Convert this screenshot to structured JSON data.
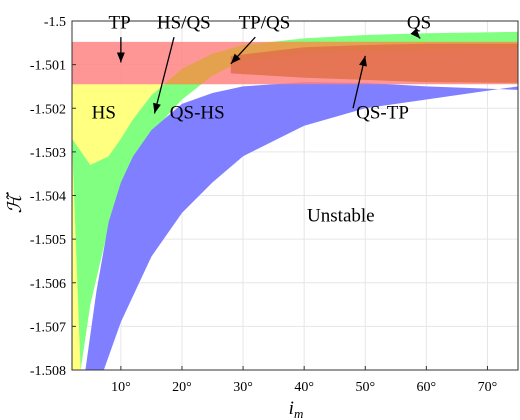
{
  "chart_data": {
    "type": "area",
    "xlabel_main": "i",
    "xlabel_sub": "m",
    "ylabel": "ℋ̃",
    "xlim": [
      2,
      75
    ],
    "ylim": [
      -1.508,
      -1.5
    ],
    "xticks": [
      10,
      20,
      30,
      40,
      50,
      60,
      70
    ],
    "xtick_labels": [
      "10°",
      "20°",
      "30°",
      "40°",
      "50°",
      "60°",
      "70°"
    ],
    "yticks": [
      -1.5,
      -1.501,
      -1.502,
      -1.503,
      -1.504,
      -1.505,
      -1.506,
      -1.507,
      -1.508
    ],
    "ytick_labels": [
      "-1.5",
      "-1.501",
      "-1.502",
      "-1.503",
      "-1.504",
      "-1.505",
      "-1.506",
      "-1.507",
      "-1.508"
    ],
    "grid": true,
    "regions": [
      {
        "name": "HS",
        "color": "#ffff80",
        "upper": [
          [
            2,
            -1.50145
          ],
          [
            75,
            -1.50145
          ]
        ],
        "lower_curve": "green-left"
      },
      {
        "name": "QS",
        "color": "#80ff80",
        "upper": [
          [
            2,
            -1.5027
          ],
          [
            5,
            -1.5033
          ],
          [
            8,
            -1.5031
          ],
          [
            10,
            -1.5027
          ],
          [
            12,
            -1.50225
          ],
          [
            15,
            -1.5017
          ],
          [
            20,
            -1.5011
          ],
          [
            25,
            -1.50075
          ],
          [
            30,
            -1.50055
          ],
          [
            40,
            -1.5004
          ],
          [
            50,
            -1.50032
          ],
          [
            60,
            -1.50028
          ],
          [
            75,
            -1.50025
          ]
        ],
        "lower": [
          [
            3.4,
            -1.508
          ],
          [
            5,
            -1.5065
          ],
          [
            8,
            -1.5047
          ],
          [
            10,
            -1.504
          ],
          [
            12,
            -1.5034
          ],
          [
            15,
            -1.5026
          ],
          [
            18,
            -1.5021
          ],
          [
            20,
            -1.5018
          ],
          [
            25,
            -1.50125
          ],
          [
            30,
            -1.5009
          ],
          [
            40,
            -1.50075
          ],
          [
            50,
            -1.5007
          ],
          [
            60,
            -1.50065
          ],
          [
            75,
            -1.50062
          ]
        ]
      },
      {
        "name": "QS-HS",
        "color": "#7f7fff",
        "upper": [
          [
            4.2,
            -1.508
          ],
          [
            6,
            -1.5062
          ],
          [
            8,
            -1.5046
          ],
          [
            10,
            -1.5037
          ],
          [
            12,
            -1.5031
          ],
          [
            15,
            -1.5025
          ],
          [
            20,
            -1.5019
          ],
          [
            25,
            -1.50165
          ],
          [
            30,
            -1.5015
          ],
          [
            40,
            -1.5014
          ],
          [
            50,
            -1.50142
          ],
          [
            60,
            -1.5015
          ],
          [
            75,
            -1.50158
          ]
        ],
        "lower": [
          [
            7.2,
            -1.508
          ],
          [
            10,
            -1.5069
          ],
          [
            15,
            -1.5054
          ],
          [
            20,
            -1.5044
          ],
          [
            25,
            -1.5037
          ],
          [
            30,
            -1.5031
          ],
          [
            40,
            -1.5024
          ],
          [
            50,
            -1.502
          ],
          [
            60,
            -1.5018
          ],
          [
            75,
            -1.5015
          ]
        ]
      },
      {
        "name": "TP",
        "color": "#ff7f7f",
        "upper": [
          [
            2,
            -1.50048
          ],
          [
            75,
            -1.50048
          ]
        ],
        "lower": [
          [
            2,
            -1.50145
          ],
          [
            75,
            -1.50145
          ]
        ]
      },
      {
        "name": "QS-TP",
        "color": "#e0704a",
        "upper": [
          [
            28,
            -1.5008
          ],
          [
            40,
            -1.5006
          ],
          [
            50,
            -1.50055
          ],
          [
            60,
            -1.50052
          ],
          [
            75,
            -1.50052
          ]
        ],
        "lower": [
          [
            28,
            -1.5012
          ],
          [
            40,
            -1.5013
          ],
          [
            50,
            -1.50135
          ],
          [
            60,
            -1.5014
          ],
          [
            75,
            -1.50142
          ]
        ]
      }
    ],
    "annotations": [
      {
        "text": "TP",
        "arrow_to": [
          10,
          -1.50095
        ]
      },
      {
        "text": "HS/QS",
        "arrow_to": [
          15.5,
          -1.50212
        ]
      },
      {
        "text": "TP/QS",
        "arrow_to": [
          28,
          -1.50098
        ]
      },
      {
        "text": "QS",
        "arrow_to": [
          59,
          -1.5004
        ]
      },
      {
        "text": "QS-TP",
        "arrow_to": [
          50,
          -1.5008
        ]
      },
      {
        "text": "HS",
        "arrow_to": null
      },
      {
        "text": "QS-HS",
        "arrow_to": null
      },
      {
        "text": "Unstable",
        "arrow_to": null
      }
    ]
  }
}
